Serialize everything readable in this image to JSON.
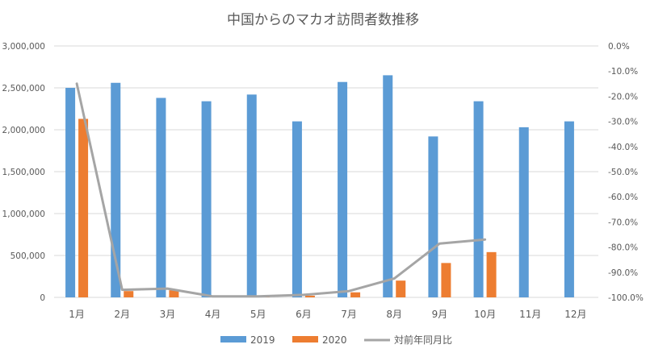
{
  "chart_data": {
    "type": "bar",
    "title": "中国からのマカオ訪問者数推移",
    "categories": [
      "1月",
      "2月",
      "3月",
      "4月",
      "5月",
      "6月",
      "7月",
      "8月",
      "9月",
      "10月",
      "11月",
      "12月"
    ],
    "series": [
      {
        "name": "2019",
        "kind": "bar",
        "axis": "left",
        "color": "#5b9bd5",
        "values": [
          2500000,
          2560000,
          2380000,
          2340000,
          2420000,
          2100000,
          2570000,
          2650000,
          1920000,
          2340000,
          2030000,
          2100000
        ]
      },
      {
        "name": "2020",
        "kind": "bar",
        "axis": "left",
        "color": "#ed7d31",
        "values": [
          2130000,
          75000,
          85000,
          8000,
          12000,
          20000,
          60000,
          200000,
          410000,
          540000,
          null,
          null
        ]
      },
      {
        "name": "対前年同月比",
        "kind": "line",
        "axis": "right",
        "color": "#a5a5a5",
        "values": [
          -15,
          -97,
          -96.5,
          -99.6,
          -99.6,
          -99,
          -97.5,
          -92.5,
          -78.6,
          -77,
          null,
          null
        ]
      }
    ],
    "left_axis": {
      "min": 0,
      "max": 3000000,
      "step": 500000,
      "tick_labels": [
        "0",
        "500,000",
        "1,000,000",
        "1,500,000",
        "2,000,000",
        "2,500,000",
        "3,000,000"
      ]
    },
    "right_axis": {
      "min": -100,
      "max": 0,
      "step": 10,
      "tick_labels": [
        "-100.0%",
        "-90.0%",
        "-80.0%",
        "-70.0%",
        "-60.0%",
        "-50.0%",
        "-40.0%",
        "-30.0%",
        "-20.0%",
        "-10.0%",
        "0.0%"
      ]
    },
    "grid": true,
    "legend_position": "bottom"
  }
}
